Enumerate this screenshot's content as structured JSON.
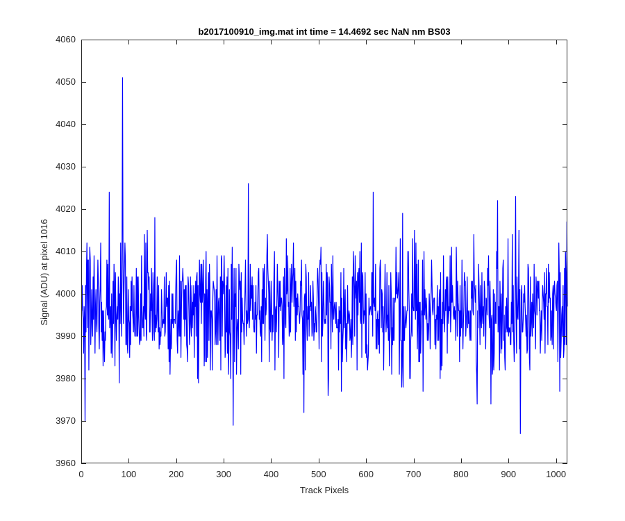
{
  "chart_data": {
    "type": "line",
    "title": "b2017100910_img.mat int time = 14.4692 sec  NaN nm BS03",
    "xlabel": "Track Pixels",
    "ylabel": "Signal (ADU) at pixel 1016",
    "xlim": [
      0,
      1024
    ],
    "ylim": [
      3960,
      4060
    ],
    "xticks": [
      0,
      100,
      200,
      300,
      400,
      500,
      600,
      700,
      800,
      900,
      1000
    ],
    "yticks": [
      3960,
      3970,
      3980,
      3990,
      4000,
      4010,
      4020,
      4030,
      4040,
      4050,
      4060
    ],
    "grid": false,
    "box": true,
    "line_color": "#0000ff",
    "series": [
      {
        "x_start": 1,
        "x_step": 1,
        "count": 1024,
        "mean": 3996,
        "min": 3967,
        "max": 4051,
        "notable_points": [
          {
            "x": 8,
            "y": 3970
          },
          {
            "x": 12,
            "y": 4012
          },
          {
            "x": 59,
            "y": 4024
          },
          {
            "x": 87,
            "y": 4051
          },
          {
            "x": 320,
            "y": 3969
          },
          {
            "x": 352,
            "y": 4026
          },
          {
            "x": 615,
            "y": 4024
          },
          {
            "x": 877,
            "y": 4022
          },
          {
            "x": 915,
            "y": 4023
          },
          {
            "x": 925,
            "y": 3967
          },
          {
            "x": 1023,
            "y": 4017
          }
        ]
      }
    ]
  }
}
